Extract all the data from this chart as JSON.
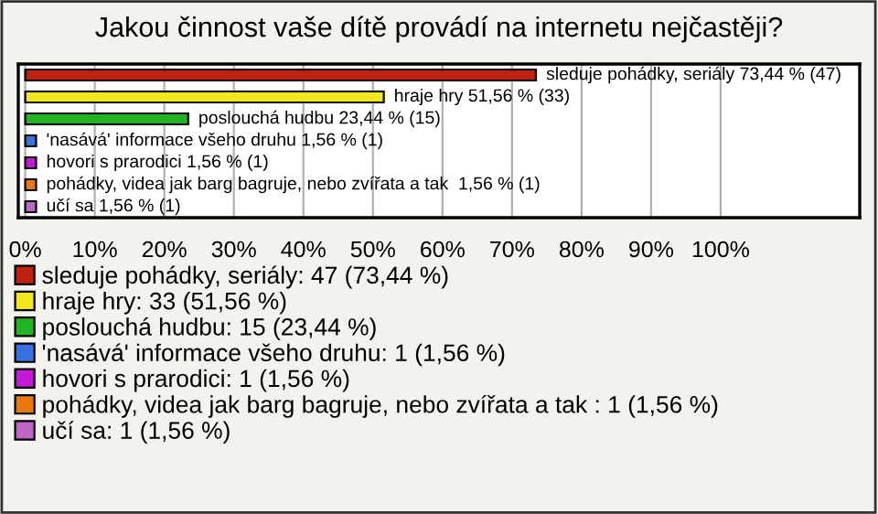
{
  "chart_data": {
    "type": "bar",
    "orientation": "horizontal",
    "title": "Jakou činnost vaše dítě provádí na internetu nejčastěji?",
    "categories": [
      null,
      null,
      null,
      null,
      null,
      null,
      null
    ],
    "series": [
      {
        "name": "sleduje pohádky, seriály: 47 (73,44 %)",
        "color": "#c0200f",
        "values": [
          73.44,
          null,
          null,
          null,
          null,
          null,
          null
        ],
        "value_labels": [
          "sleduje pohádky, seriály 73,44 % (47)",
          null,
          null,
          null,
          null,
          null,
          null
        ]
      },
      {
        "name": "hraje hry: 33 (51,56 %)",
        "color": "#f2e61c",
        "values": [
          null,
          51.56,
          null,
          null,
          null,
          null,
          null
        ],
        "value_labels": [
          null,
          "hraje hry 51,56 % (33)",
          null,
          null,
          null,
          null,
          null
        ]
      },
      {
        "name": "poslouchá hudbu: 15 (23,44 %)",
        "color": "#22b422",
        "values": [
          null,
          null,
          23.44,
          null,
          null,
          null,
          null
        ],
        "value_labels": [
          null,
          null,
          "poslouchá hudbu 23,44 % (15)",
          null,
          null,
          null,
          null
        ]
      },
      {
        "name": "'nasává' informace všeho druhu: 1 (1,56 %)",
        "color": "#3a6fe0",
        "values": [
          null,
          null,
          null,
          1.56,
          null,
          null,
          null
        ],
        "value_labels": [
          null,
          null,
          null,
          "'nasává' informace všeho druhu 1,56 % (1)",
          null,
          null,
          null
        ]
      },
      {
        "name": "hovori s prarodici: 1 (1,56 %)",
        "color": "#c21ad6",
        "values": [
          null,
          null,
          null,
          null,
          1.56,
          null,
          null
        ],
        "value_labels": [
          null,
          null,
          null,
          null,
          "hovori s prarodici 1,56 % (1)",
          null,
          null
        ]
      },
      {
        "name": "pohádky, videa jak barg bagruje, nebo zvířata a tak : 1 (1,56 %)",
        "color": "#e8780f",
        "values": [
          null,
          null,
          null,
          null,
          null,
          1.56,
          null
        ],
        "value_labels": [
          null,
          null,
          null,
          null,
          null,
          "pohádky, videa jak barg bagruje, nebo zvířata a tak  1,56 % (1)",
          null
        ]
      },
      {
        "name": "učí sa: 1 (1,56 %)",
        "color": "#c066c8",
        "values": [
          null,
          null,
          null,
          null,
          null,
          null,
          1.56
        ],
        "value_labels": [
          null,
          null,
          null,
          null,
          null,
          null,
          "učí sa 1,56 % (1)"
        ]
      }
    ],
    "xlim": [
      -1,
      120
    ],
    "xticks": [
      {
        "value": 0,
        "label": "0%"
      },
      {
        "value": 10,
        "label": "10%"
      },
      {
        "value": 20,
        "label": "20%"
      },
      {
        "value": 30,
        "label": "30%"
      },
      {
        "value": 40,
        "label": "40%"
      },
      {
        "value": 50,
        "label": "50%"
      },
      {
        "value": 60,
        "label": "60%"
      },
      {
        "value": 70,
        "label": "70%"
      },
      {
        "value": 80,
        "label": "80%"
      },
      {
        "value": 90,
        "label": "90%"
      },
      {
        "value": 100,
        "label": "100%"
      }
    ],
    "grid": "x",
    "legend": "bottom"
  }
}
